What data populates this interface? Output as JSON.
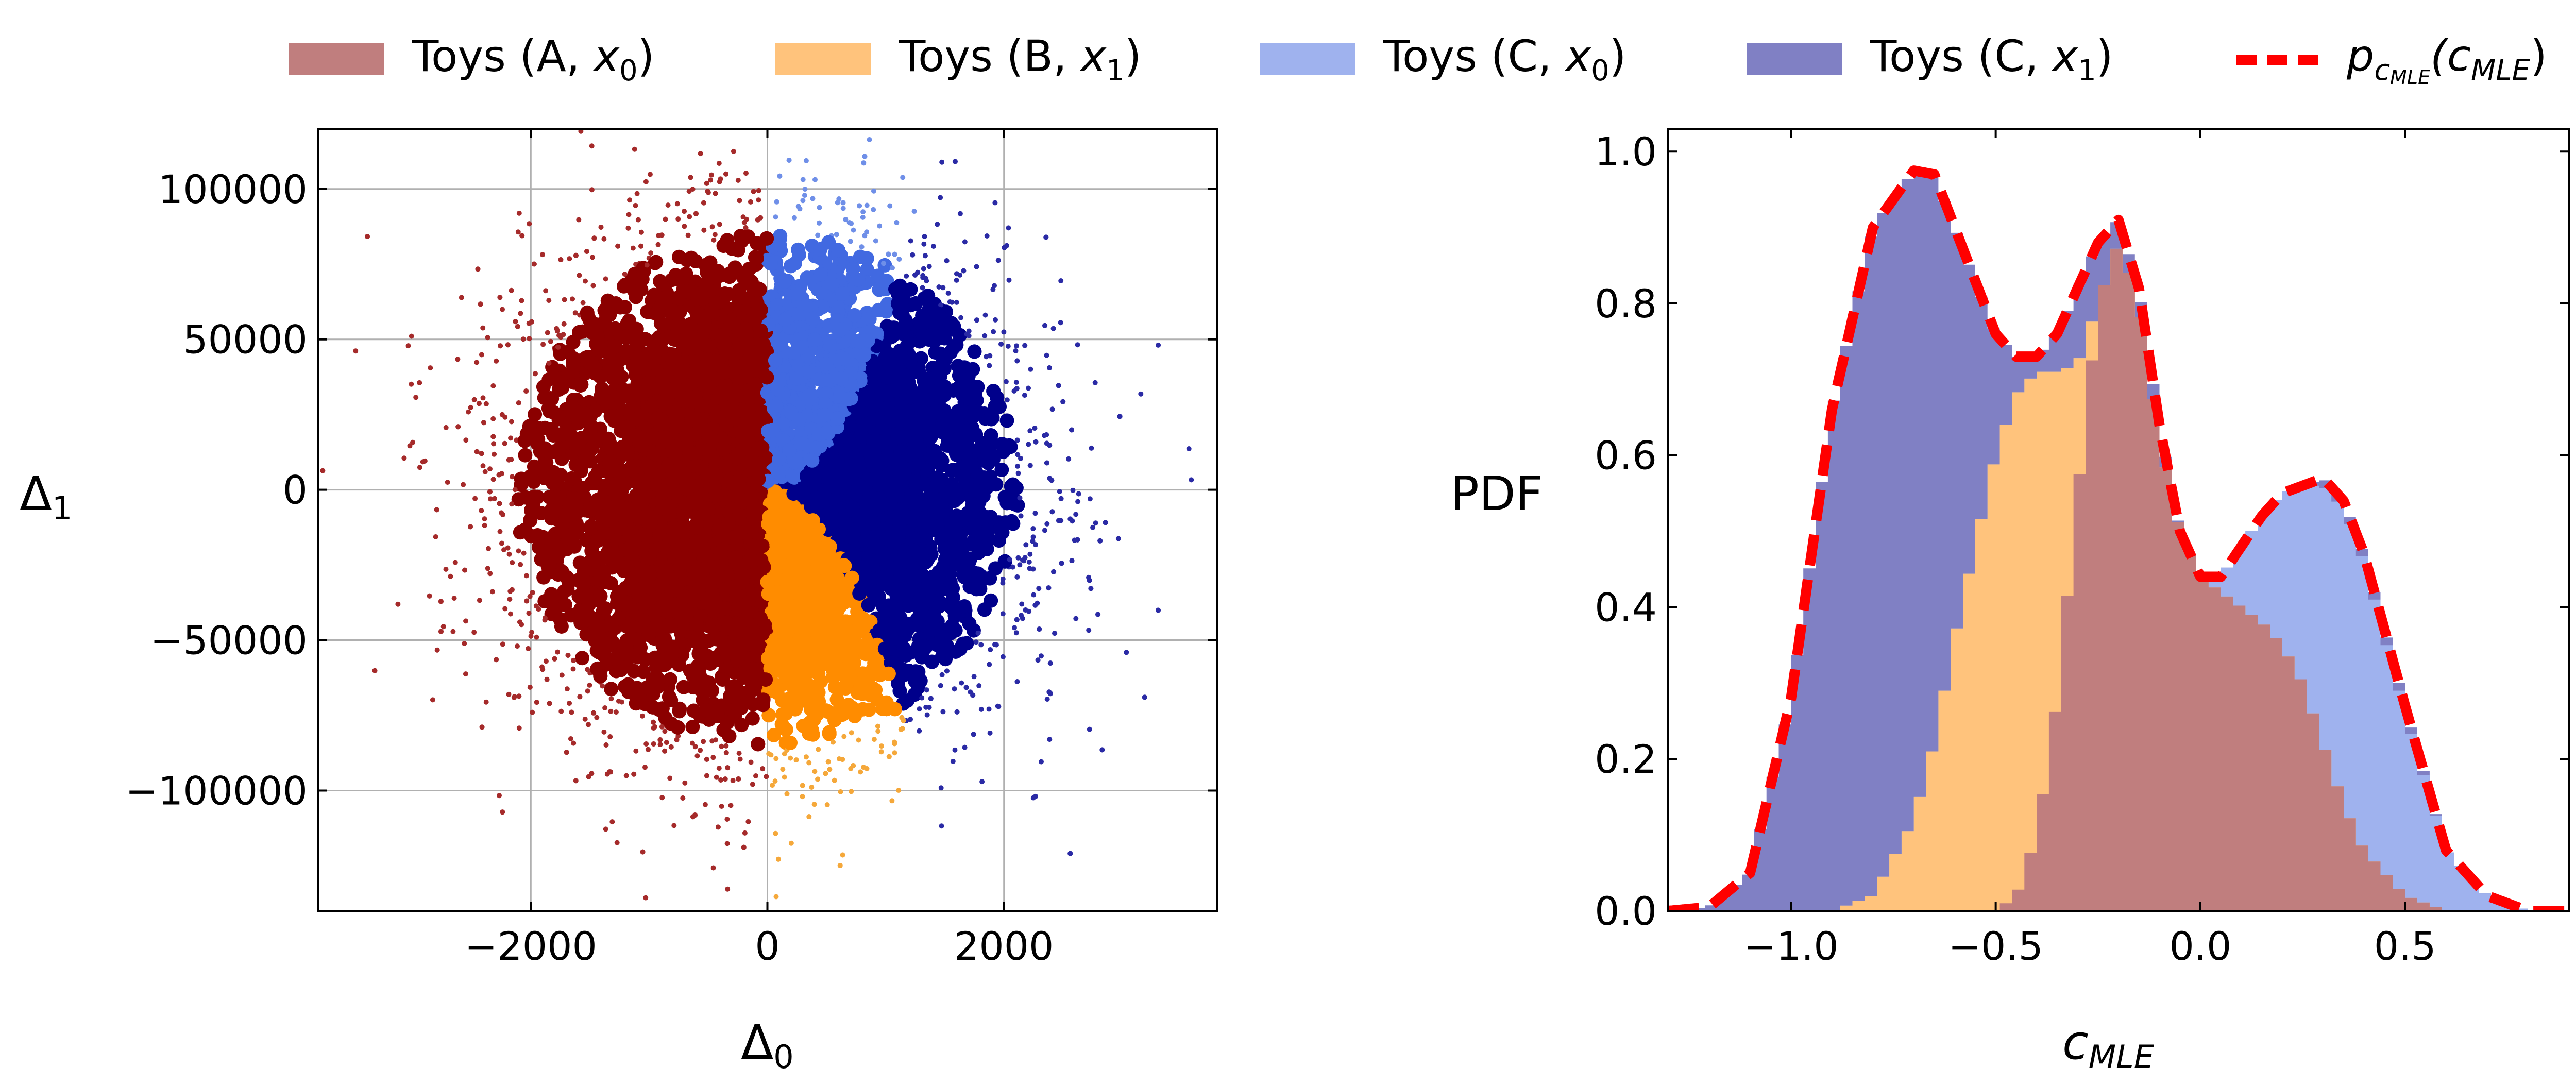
{
  "legend": {
    "items": [
      {
        "label": "Toys (A, ",
        "var": "x",
        "sub": "0",
        "color": "#c07e7e",
        "kind": "patch"
      },
      {
        "label": "Toys (B, ",
        "var": "x",
        "sub": "1",
        "color": "#ffc37c",
        "kind": "patch"
      },
      {
        "label": "Toys (C, ",
        "var": "x",
        "sub": "0",
        "color": "#9fb2ee",
        "kind": "patch"
      },
      {
        "label": "Toys (C, ",
        "var": "x",
        "sub": "1",
        "color": "#8080c4",
        "kind": "patch"
      },
      {
        "label": "p",
        "sub_label": "c",
        "subsub_label": "MLE",
        "paren_label": "(c",
        "paren_sub": "MLE",
        "color": "#ff0000",
        "kind": "dashed-line"
      }
    ]
  },
  "chart_data": [
    {
      "type": "scatter",
      "xlabel": "Δ0",
      "ylabel": "Δ1",
      "xlim": [
        -3800,
        3800
      ],
      "ylim": [
        -140000,
        120000
      ],
      "xticks": [
        -2000,
        0,
        2000
      ],
      "xtick_labels": [
        "−2000",
        "0",
        "2000"
      ],
      "yticks": [
        -100000,
        -50000,
        0,
        50000,
        100000
      ],
      "ytick_labels": [
        "−100000",
        "−50000",
        "0",
        "50000",
        "100000"
      ],
      "grid": true,
      "sigma_x": 1000,
      "sigma_y": 40000,
      "region_boundary": "Δ1 = ±0.057·Δ0²",
      "regions": [
        {
          "name": "Toys (A, x0)",
          "condition": "Δ0 < 0",
          "color_core": "#8b0000",
          "color_edge": "#a52a2a"
        },
        {
          "name": "Toys (B, x1)",
          "condition": "Δ0 > 0 and Δ1 < −0.057·Δ0²",
          "color_core": "#ff8c00",
          "color_edge": "#f5a83a"
        },
        {
          "name": "Toys (C, x0)",
          "condition": "Δ0 > 0 and Δ1 > 0.057·Δ0²",
          "color_core": "#4169e1",
          "color_edge": "#6f8fe8"
        },
        {
          "name": "Toys (C, x1)",
          "condition": "Δ0 > 0 and |Δ1| ≤ 0.057·Δ0²",
          "color_core": "#00008b",
          "color_edge": "#2a2aa5"
        }
      ]
    },
    {
      "type": "area",
      "xlabel": "cMLE",
      "ylabel": "PDF",
      "xlim": [
        -1.3,
        0.9
      ],
      "ylim": [
        0,
        1.03
      ],
      "xticks": [
        -1.0,
        -0.5,
        0.0,
        0.5
      ],
      "xtick_labels": [
        "−1.0",
        "−0.5",
        "0.0",
        "0.5"
      ],
      "yticks": [
        0.0,
        0.2,
        0.4,
        0.6,
        0.8,
        1.0
      ],
      "ytick_labels": [
        "0.0",
        "0.2",
        "0.4",
        "0.6",
        "0.8",
        "1.0"
      ],
      "grid": false,
      "x": [
        -1.3,
        -1.2,
        -1.1,
        -1.0,
        -0.9,
        -0.8,
        -0.7,
        -0.65,
        -0.6,
        -0.5,
        -0.45,
        -0.4,
        -0.35,
        -0.3,
        -0.25,
        -0.2,
        -0.15,
        -0.1,
        -0.05,
        0.0,
        0.05,
        0.1,
        0.15,
        0.2,
        0.25,
        0.3,
        0.35,
        0.4,
        0.5,
        0.6,
        0.7,
        0.8,
        0.9
      ],
      "series": [
        {
          "name": "Toys (A, x0)",
          "color": "#c07e7e",
          "values": [
            0,
            0,
            0,
            0,
            0,
            0,
            0,
            0,
            0,
            0,
            0.02,
            0.1,
            0.28,
            0.55,
            0.8,
            0.88,
            0.8,
            0.62,
            0.5,
            0.44,
            0.42,
            0.4,
            0.38,
            0.35,
            0.3,
            0.22,
            0.14,
            0.08,
            0.02,
            0,
            0,
            0,
            0
          ]
        },
        {
          "name": "Toys (B, x1)",
          "color": "#ffc37c",
          "values": [
            0,
            0,
            0,
            0,
            0,
            0.02,
            0.12,
            0.22,
            0.36,
            0.6,
            0.68,
            0.71,
            0.71,
            0.72,
            0.8,
            0.88,
            0.8,
            0.62,
            0.5,
            0.44,
            0.42,
            0.4,
            0.38,
            0.35,
            0.3,
            0.22,
            0.14,
            0.08,
            0.02,
            0,
            0,
            0,
            0
          ]
        },
        {
          "name": "Toys (C, x0)",
          "color": "#9fb2ee",
          "values": [
            0,
            0,
            0,
            0,
            0,
            0.02,
            0.12,
            0.22,
            0.36,
            0.6,
            0.68,
            0.71,
            0.71,
            0.72,
            0.8,
            0.88,
            0.8,
            0.62,
            0.5,
            0.44,
            0.44,
            0.48,
            0.52,
            0.55,
            0.56,
            0.56,
            0.53,
            0.46,
            0.26,
            0.08,
            0.02,
            0,
            0
          ]
        },
        {
          "name": "Toys (C, x1)",
          "color": "#8080c4",
          "values": [
            0,
            0.005,
            0.05,
            0.28,
            0.66,
            0.9,
            0.975,
            0.97,
            0.9,
            0.76,
            0.73,
            0.73,
            0.76,
            0.82,
            0.88,
            0.91,
            0.82,
            0.64,
            0.5,
            0.44,
            0.44,
            0.48,
            0.52,
            0.55,
            0.56,
            0.57,
            0.54,
            0.47,
            0.27,
            0.08,
            0.02,
            0,
            0
          ]
        },
        {
          "name": "p_cMLE(cMLE)",
          "color": "#ff0000",
          "style": "dashed",
          "values": [
            0,
            0.005,
            0.05,
            0.28,
            0.66,
            0.9,
            0.975,
            0.97,
            0.9,
            0.76,
            0.73,
            0.73,
            0.76,
            0.82,
            0.88,
            0.91,
            0.82,
            0.64,
            0.5,
            0.44,
            0.44,
            0.48,
            0.52,
            0.55,
            0.56,
            0.57,
            0.54,
            0.47,
            0.27,
            0.08,
            0.02,
            0,
            0
          ]
        }
      ]
    }
  ]
}
